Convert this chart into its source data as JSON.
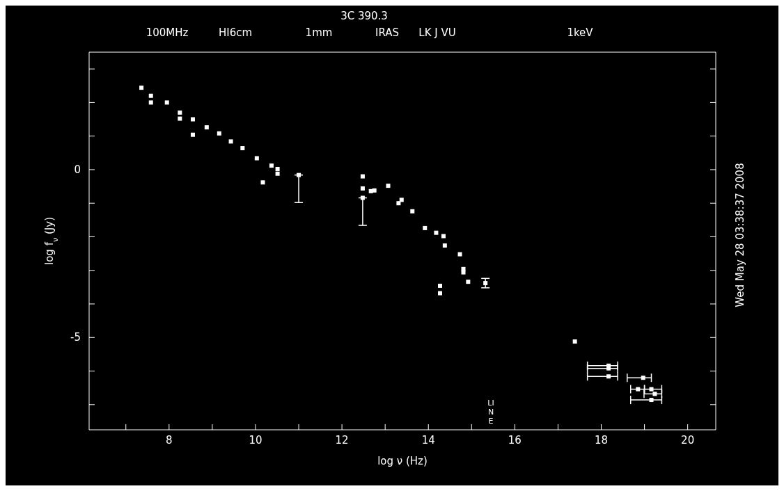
{
  "chart_data": {
    "type": "scatter",
    "title": "3C 390.3",
    "xlabel": "log ν (Hz)",
    "ylabel": "log f$_{ν}$ (Jy)",
    "xlim": [
      6.15,
      20.65
    ],
    "ylim": [
      -7.75,
      3.5
    ],
    "xticks": [
      {
        "value": 7,
        "label": null
      },
      8,
      {
        "value": 9,
        "label": null
      },
      10,
      {
        "value": 11,
        "label": null
      },
      12,
      {
        "value": 13,
        "label": null
      },
      14,
      {
        "value": 15,
        "label": null
      },
      16,
      {
        "value": 17,
        "label": null
      },
      18,
      {
        "value": 19,
        "label": null
      },
      20
    ],
    "yticks": [
      {
        "value": -7,
        "label": null
      },
      {
        "value": -6,
        "label": null
      },
      -5,
      {
        "value": -4,
        "label": null
      },
      {
        "value": -3,
        "label": null
      },
      {
        "value": -2,
        "label": null
      },
      {
        "value": -1,
        "label": null
      },
      0,
      {
        "value": 1,
        "label": null
      },
      {
        "value": 2,
        "label": null
      },
      {
        "value": 3,
        "label": null
      }
    ],
    "marker": "square",
    "annotations": [
      "100MHz",
      "HI6cm",
      "1mm",
      "IRAS",
      "LK J VU",
      "1keV",
      "LINE",
      "Wed May 28 03:38:37 2008"
    ],
    "series": [
      {
        "color": "#ffffff",
        "x": [
          7.36,
          7.58,
          7.58,
          7.95,
          8.25,
          8.25,
          8.55,
          8.55,
          8.87,
          9.16,
          9.43,
          9.7,
          10.03,
          10.17,
          10.37,
          10.51,
          10.51,
          11.0,
          12.48,
          12.48,
          12.48,
          12.67,
          12.75,
          13.07,
          13.38,
          13.31,
          13.63,
          13.92,
          14.18,
          14.35,
          14.38,
          14.27,
          14.27,
          14.73,
          14.81,
          14.81,
          14.92,
          15.32,
          17.39,
          18.17,
          18.17,
          18.17,
          18.97,
          18.85,
          19.16,
          19.24,
          19.16
        ],
        "values": [
          2.44,
          2.2,
          2.0,
          2.0,
          1.7,
          1.52,
          1.5,
          1.04,
          1.26,
          1.08,
          0.84,
          0.64,
          0.34,
          -0.38,
          0.12,
          0.02,
          -0.12,
          -0.16,
          -0.2,
          -0.56,
          -0.84,
          -0.64,
          -0.62,
          -0.48,
          -0.9,
          -1.0,
          -1.24,
          -1.74,
          -1.88,
          -1.98,
          -2.26,
          -3.46,
          -3.68,
          -2.52,
          -2.96,
          -3.06,
          -3.34,
          -3.38,
          -5.12,
          -5.84,
          -5.92,
          -6.16,
          -6.2,
          -6.54,
          -6.54,
          -6.68,
          -6.86
        ],
        "errors": [
          null,
          null,
          null,
          null,
          null,
          null,
          null,
          null,
          null,
          null,
          null,
          null,
          null,
          null,
          null,
          null,
          null,
          [
            -0.98,
            -0.16
          ],
          null,
          null,
          [
            -1.66,
            -0.84
          ],
          null,
          null,
          null,
          null,
          null,
          null,
          null,
          null,
          null,
          null,
          null,
          null,
          null,
          null,
          null,
          null,
          0.14,
          null,
          null,
          null,
          null,
          null,
          null,
          null,
          null,
          null
        ],
        "xerrors": [
          null,
          null,
          null,
          null,
          null,
          null,
          null,
          null,
          null,
          null,
          null,
          null,
          null,
          null,
          null,
          null,
          null,
          null,
          null,
          null,
          null,
          null,
          null,
          null,
          null,
          null,
          null,
          null,
          null,
          null,
          null,
          null,
          null,
          null,
          null,
          null,
          null,
          null,
          null,
          [
            17.68,
            18.38
          ],
          [
            17.68,
            18.38
          ],
          [
            17.68,
            18.38
          ],
          [
            18.6,
            19.16
          ],
          [
            18.68,
            19.0
          ],
          [
            19.0,
            19.4
          ],
          [
            18.99,
            19.4
          ],
          [
            18.68,
            19.4
          ]
        ]
      }
    ]
  }
}
